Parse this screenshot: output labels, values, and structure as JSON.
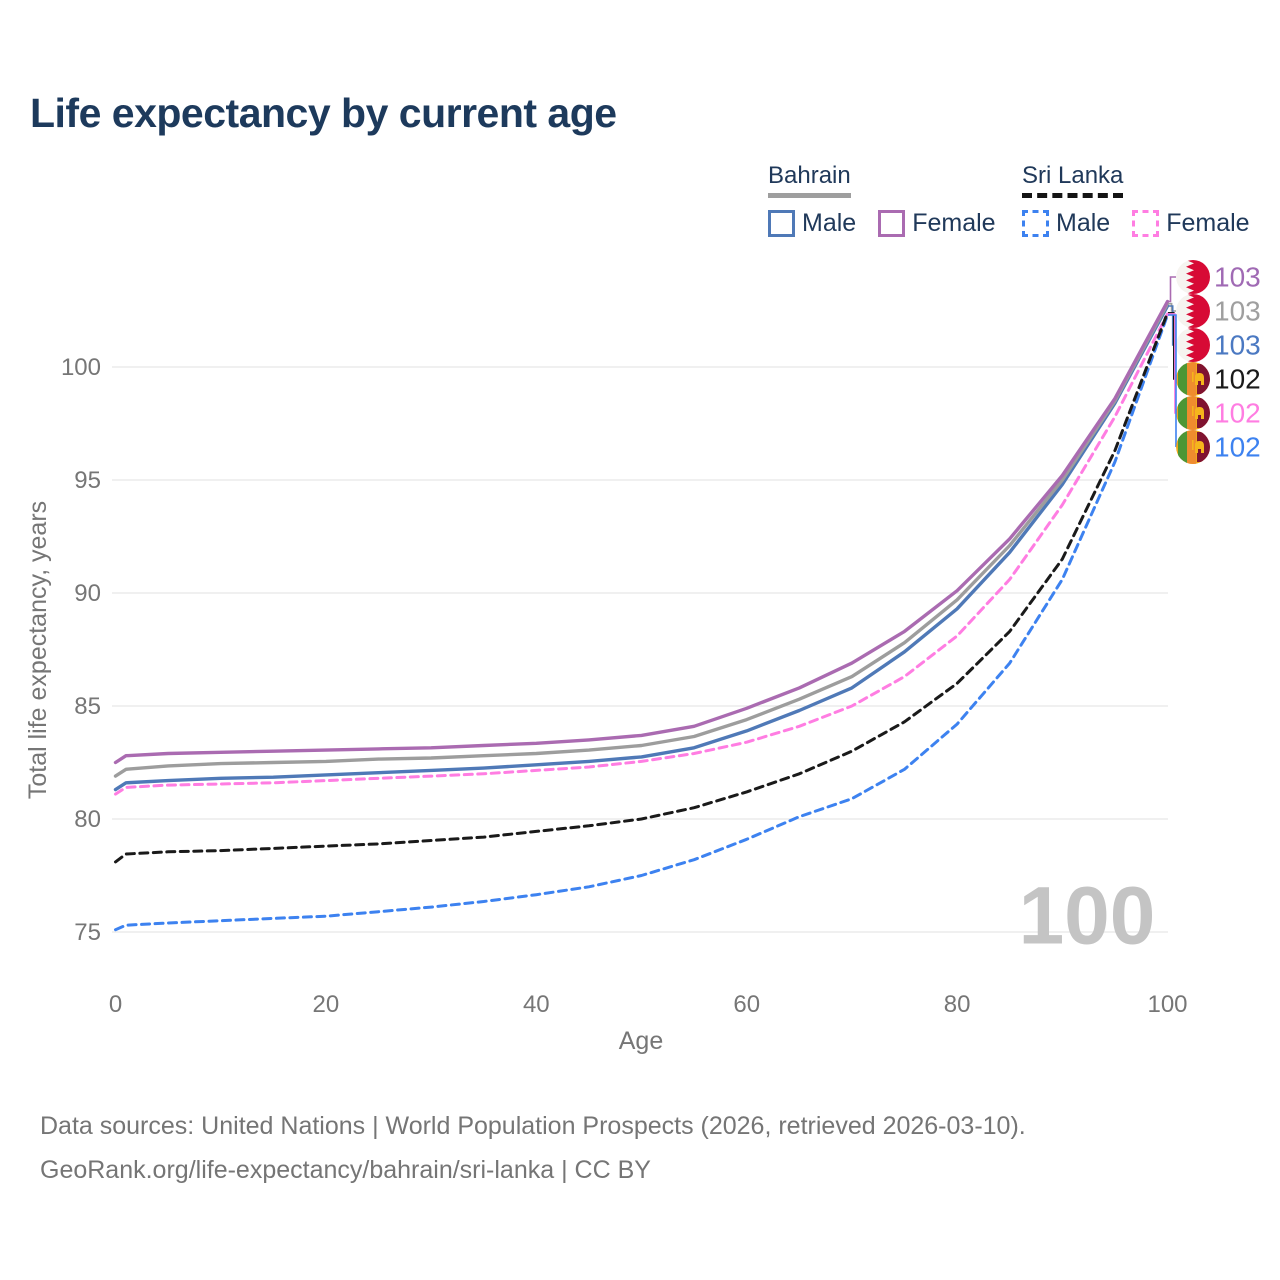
{
  "page": {
    "title": "Life expectancy by current age"
  },
  "legend": {
    "groups": [
      {
        "name": "Bahrain",
        "line_style": "solid",
        "underline_color": "#9e9e9e",
        "items": [
          {
            "label": "Male",
            "color": "#4f79b7"
          },
          {
            "label": "Female",
            "color": "#aa6bb1"
          }
        ]
      },
      {
        "name": "Sri Lanka",
        "line_style": "dashed",
        "underline_color": "#141414",
        "items": [
          {
            "label": "Male",
            "color": "#3d82f0"
          },
          {
            "label": "Female",
            "color": "#ff7de2"
          }
        ]
      }
    ]
  },
  "chart_data": {
    "type": "line",
    "title": "Life expectancy by current age",
    "xlabel": "Age",
    "ylabel": "Total life expectancy, years",
    "x_ticks": [
      0,
      20,
      40,
      60,
      80,
      100
    ],
    "y_ticks": [
      75,
      80,
      85,
      90,
      95,
      100
    ],
    "xlim": [
      0,
      100
    ],
    "ylim": [
      73.5,
      103.5
    ],
    "grid": "horizontal-only",
    "legend_position": "top-right",
    "watermark": "100",
    "ages": [
      0,
      1,
      5,
      10,
      15,
      20,
      25,
      30,
      35,
      40,
      45,
      50,
      55,
      60,
      65,
      70,
      75,
      80,
      85,
      90,
      95,
      100
    ],
    "series": [
      {
        "name": "Bahrain — Female",
        "country": "Bahrain",
        "sex": "Female",
        "color": "#aa6bb1",
        "dashed": false,
        "end_label": "103",
        "end_label_color": "#a06ab4",
        "flag": "bahrain",
        "values": [
          82.5,
          82.8,
          82.9,
          82.95,
          83.0,
          83.05,
          83.1,
          83.15,
          83.25,
          83.35,
          83.5,
          83.7,
          84.1,
          84.9,
          85.8,
          86.9,
          88.3,
          90.1,
          92.4,
          95.2,
          98.6,
          102.9
        ]
      },
      {
        "name": "Bahrain — Both sexes",
        "country": "Bahrain",
        "sex": "Both",
        "color": "#9d9d9d",
        "dashed": false,
        "end_label": "103",
        "end_label_color": "#9f9f9f",
        "flag": "bahrain",
        "values": [
          81.9,
          82.2,
          82.35,
          82.45,
          82.5,
          82.55,
          82.65,
          82.7,
          82.8,
          82.9,
          83.05,
          83.25,
          83.65,
          84.4,
          85.3,
          86.3,
          87.8,
          89.7,
          92.1,
          95.0,
          98.5,
          102.8
        ]
      },
      {
        "name": "Bahrain — Male",
        "country": "Bahrain",
        "sex": "Male",
        "color": "#4f79b7",
        "dashed": false,
        "end_label": "103",
        "end_label_color": "#4b79c2",
        "flag": "bahrain",
        "values": [
          81.3,
          81.6,
          81.7,
          81.8,
          81.85,
          81.95,
          82.05,
          82.15,
          82.25,
          82.4,
          82.55,
          82.75,
          83.15,
          83.9,
          84.8,
          85.8,
          87.4,
          89.3,
          91.8,
          94.8,
          98.4,
          102.7
        ]
      },
      {
        "name": "Sri Lanka — Both sexes",
        "country": "Sri Lanka",
        "sex": "Both",
        "color": "#1a1a1a",
        "dashed": true,
        "end_label": "102",
        "end_label_color": "#1a1a1a",
        "flag": "sri-lanka",
        "values": [
          78.1,
          78.45,
          78.55,
          78.6,
          78.7,
          78.8,
          78.9,
          79.05,
          79.2,
          79.45,
          79.7,
          80.0,
          80.5,
          81.2,
          82.0,
          83.0,
          84.3,
          86.0,
          88.3,
          91.5,
          96.3,
          102.4
        ]
      },
      {
        "name": "Sri Lanka — Female",
        "country": "Sri Lanka",
        "sex": "Female",
        "color": "#ff7de2",
        "dashed": true,
        "end_label": "102",
        "end_label_color": "#ff7de2",
        "flag": "sri-lanka",
        "values": [
          81.1,
          81.4,
          81.5,
          81.55,
          81.6,
          81.7,
          81.8,
          81.9,
          82.0,
          82.15,
          82.3,
          82.55,
          82.9,
          83.4,
          84.1,
          85.0,
          86.3,
          88.1,
          90.6,
          93.9,
          97.8,
          102.35
        ]
      },
      {
        "name": "Sri Lanka — Male",
        "country": "Sri Lanka",
        "sex": "Male",
        "color": "#3d82f0",
        "dashed": true,
        "end_label": "102",
        "end_label_color": "#3d82f0",
        "flag": "sri-lanka",
        "values": [
          75.1,
          75.3,
          75.4,
          75.5,
          75.6,
          75.7,
          75.9,
          76.1,
          76.35,
          76.65,
          77.0,
          77.5,
          78.2,
          79.1,
          80.1,
          80.9,
          82.2,
          84.2,
          86.9,
          90.6,
          95.8,
          102.3
        ]
      }
    ]
  },
  "footer": {
    "line1": "Data sources: United Nations | World Population Prospects (2026, retrieved 2026-03-10).",
    "line2": "GeoRank.org/life-expectancy/bahrain/sri-lanka | CC BY"
  }
}
